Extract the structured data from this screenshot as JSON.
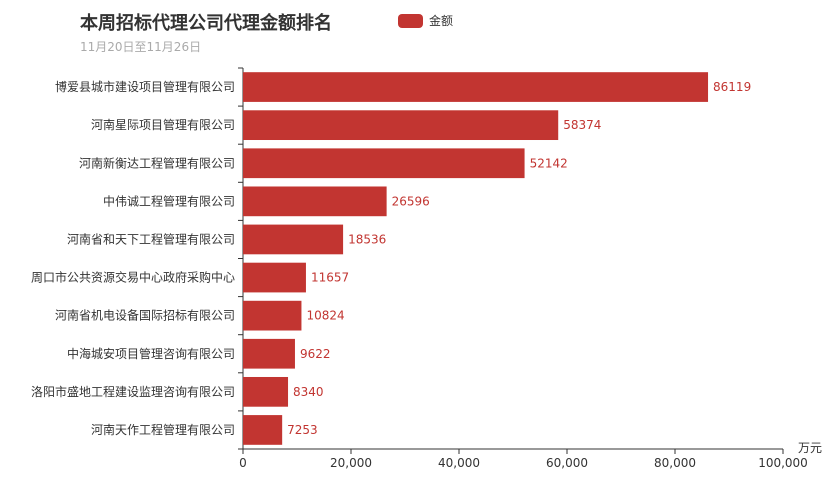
{
  "chart_data": {
    "type": "bar",
    "orientation": "horizontal",
    "title": "本周招标代理公司代理金额排名",
    "subtitle": "11月20日至11月26日",
    "legend": [
      "金额"
    ],
    "legend_position": "top",
    "xlabel": "万元",
    "xlim": [
      0,
      100000
    ],
    "xticks": [
      "0",
      "20,000",
      "40,000",
      "60,000",
      "80,000",
      "100,000"
    ],
    "grid": false,
    "bar_color": "#c23531",
    "categories": [
      "博爱县城市建设项目管理有限公司",
      "河南星际项目管理有限公司",
      "河南新衡达工程管理有限公司",
      "中伟诚工程管理有限公司",
      "河南省和天下工程管理有限公司",
      "周口市公共资源交易中心政府采购中心",
      "河南省机电设备国际招标有限公司",
      "中海城安项目管理咨询有限公司",
      "洛阳市盛地工程建设监理咨询有限公司",
      "河南天作工程管理有限公司"
    ],
    "series": [
      {
        "name": "金额",
        "values": [
          86119,
          58374,
          52142,
          26596,
          18536,
          11657,
          10824,
          9622,
          8340,
          7253
        ]
      }
    ]
  }
}
